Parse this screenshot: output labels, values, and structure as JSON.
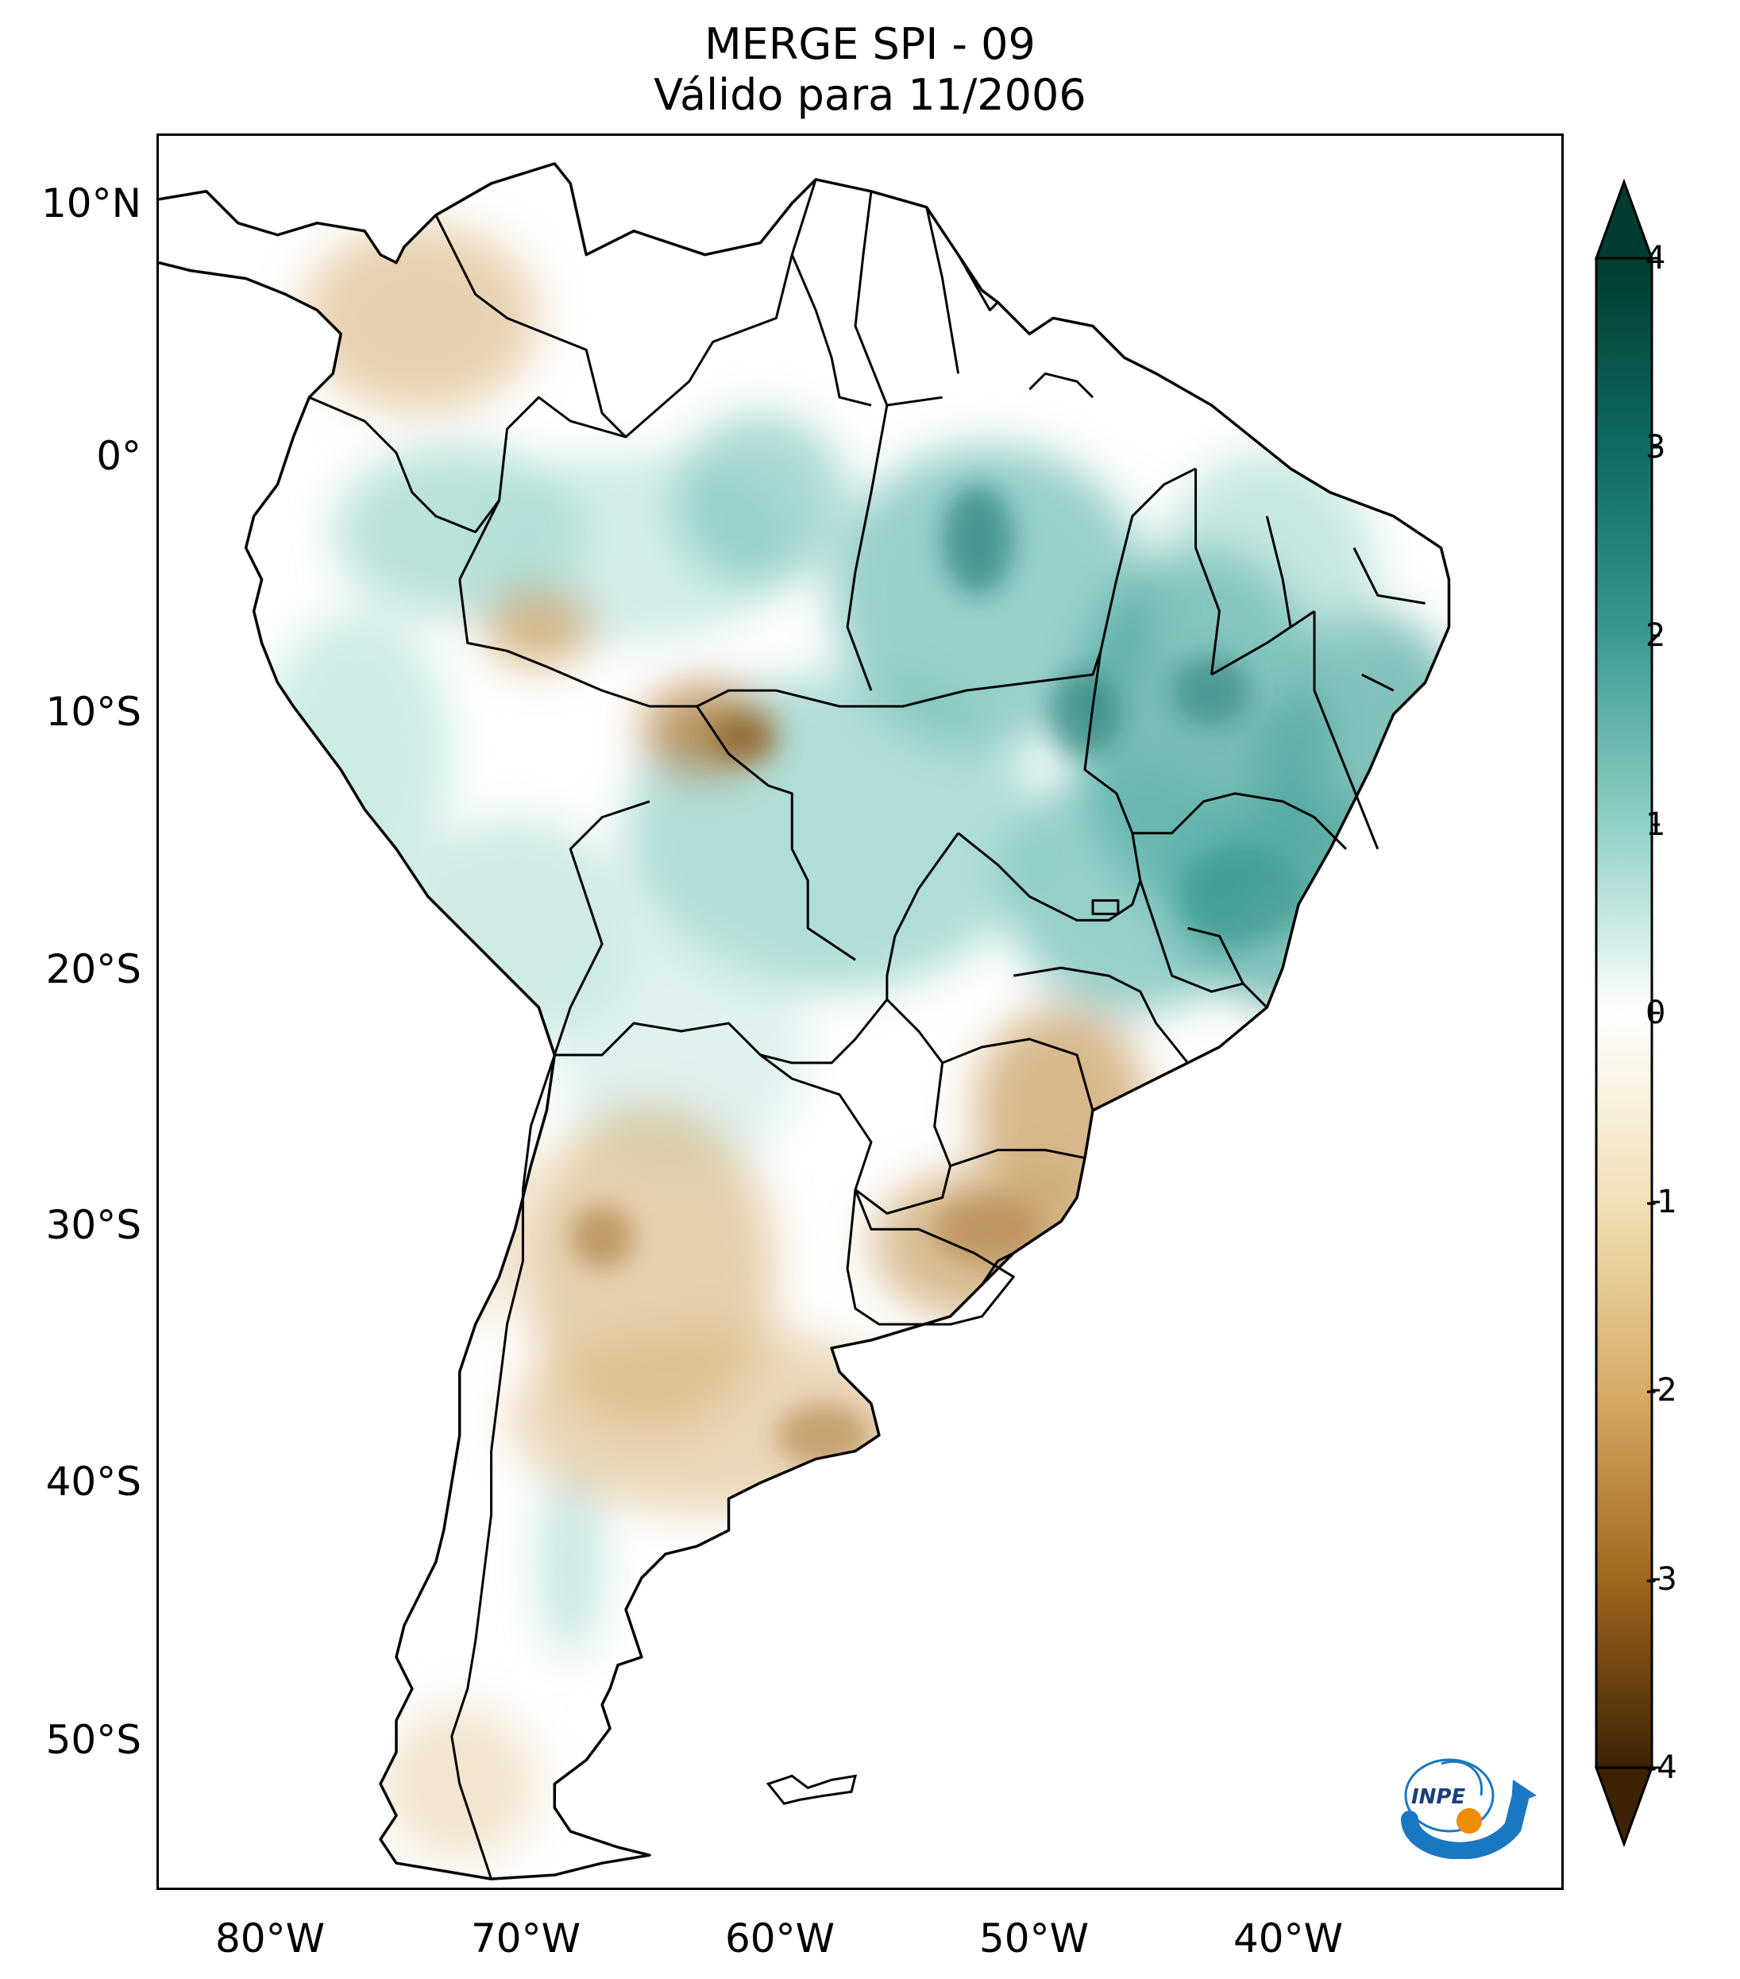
{
  "title": {
    "line1": "MERGE   SPI - 09",
    "line2": "Válido para 11/2006"
  },
  "map": {
    "type": "choropleth-map",
    "region": "South America",
    "variable": "SPI - 09",
    "lat_labels": [
      "10°N",
      "0°",
      "10°S",
      "20°S",
      "30°S",
      "40°S",
      "50°S"
    ],
    "lon_labels": [
      "80°W",
      "70°W",
      "60°W",
      "50°W",
      "40°W"
    ],
    "lat_range": [
      -56,
      13
    ],
    "lon_range": [
      -85,
      -29
    ]
  },
  "colorbar": {
    "ticks": [
      "4",
      "3",
      "2",
      "1",
      "0",
      "-1",
      "-2",
      "-3",
      "-4"
    ],
    "range": [
      -4,
      4
    ],
    "extend": "both",
    "colors": {
      "wet_max": "#013c30",
      "wet": "#2b8a82",
      "wet_light": "#bfe6df",
      "neutral": "#ffffff",
      "dry_light": "#f0dfb6",
      "dry": "#bf812d",
      "dry_max": "#3d2303"
    }
  },
  "logo": {
    "icon": "inpe-logo-icon",
    "text": "INPE"
  }
}
